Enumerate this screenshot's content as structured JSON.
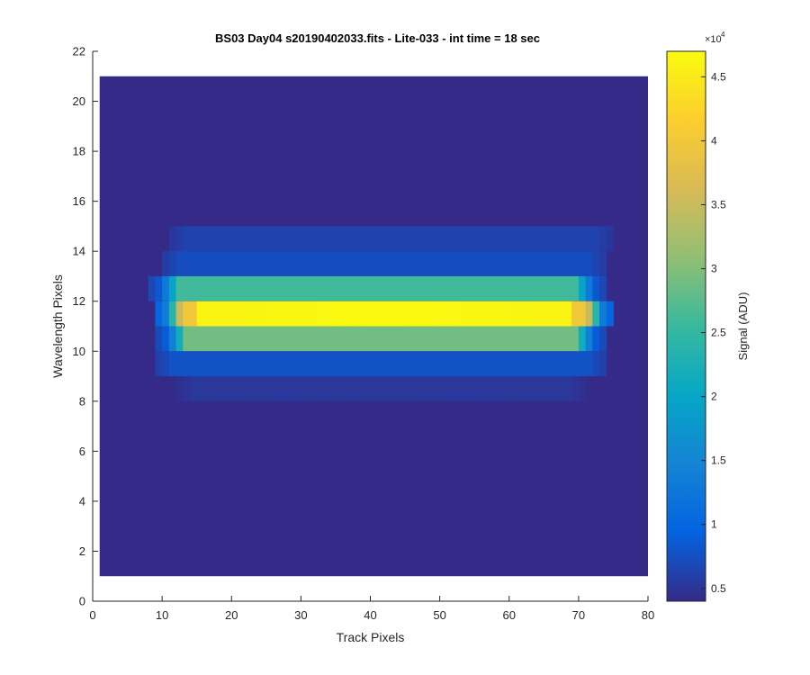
{
  "chart_data": {
    "type": "heatmap",
    "title": "BS03 Day04  s20190402033.fits - Lite-033 - int time = 18 sec",
    "xlabel": "Track Pixels",
    "ylabel": "Wavelength Pixels",
    "xlim": [
      0,
      80
    ],
    "ylim": [
      0,
      22
    ],
    "xticks": [
      0,
      10,
      20,
      30,
      40,
      50,
      60,
      70,
      80
    ],
    "yticks": [
      0,
      2,
      4,
      6,
      8,
      10,
      12,
      14,
      16,
      18,
      20,
      22
    ],
    "data_extent": {
      "x": [
        1,
        80
      ],
      "y": [
        1,
        21
      ]
    },
    "background_value": 4000,
    "rows": [
      {
        "y": [
          14,
          15
        ],
        "x": [
          11,
          75
        ],
        "value": 6300
      },
      {
        "y": [
          13,
          14
        ],
        "x": [
          10,
          74
        ],
        "value": 7300
      },
      {
        "y": [
          12,
          13
        ],
        "x": [
          8,
          74
        ],
        "value": 26000,
        "edge_value": 13000
      },
      {
        "y": [
          11,
          12
        ],
        "x": [
          9,
          75
        ],
        "value": 46000,
        "edge_value": 24000,
        "peak_value": 47000,
        "right_highlight_value": 40000
      },
      {
        "y": [
          10,
          11
        ],
        "x": [
          9,
          74
        ],
        "value": 29000,
        "edge_value": 14000
      },
      {
        "y": [
          9,
          10
        ],
        "x": [
          9,
          74
        ],
        "value": 7800
      },
      {
        "y": [
          8,
          9
        ],
        "x": [
          12,
          71
        ],
        "value": 5200
      }
    ],
    "colorbar": {
      "label": "Signal (ADU)",
      "min": 4000,
      "max": 47000,
      "ticks": [
        0.5,
        1,
        1.5,
        2,
        2.5,
        3,
        3.5,
        4,
        4.5
      ],
      "tick_labels": [
        "0.5",
        "1",
        "1.5",
        "2",
        "2.5",
        "3",
        "3.5",
        "4",
        "4.5"
      ],
      "multiplier_base": "×10",
      "multiplier_exp": "4",
      "colormap": "parula"
    },
    "grid": false
  }
}
